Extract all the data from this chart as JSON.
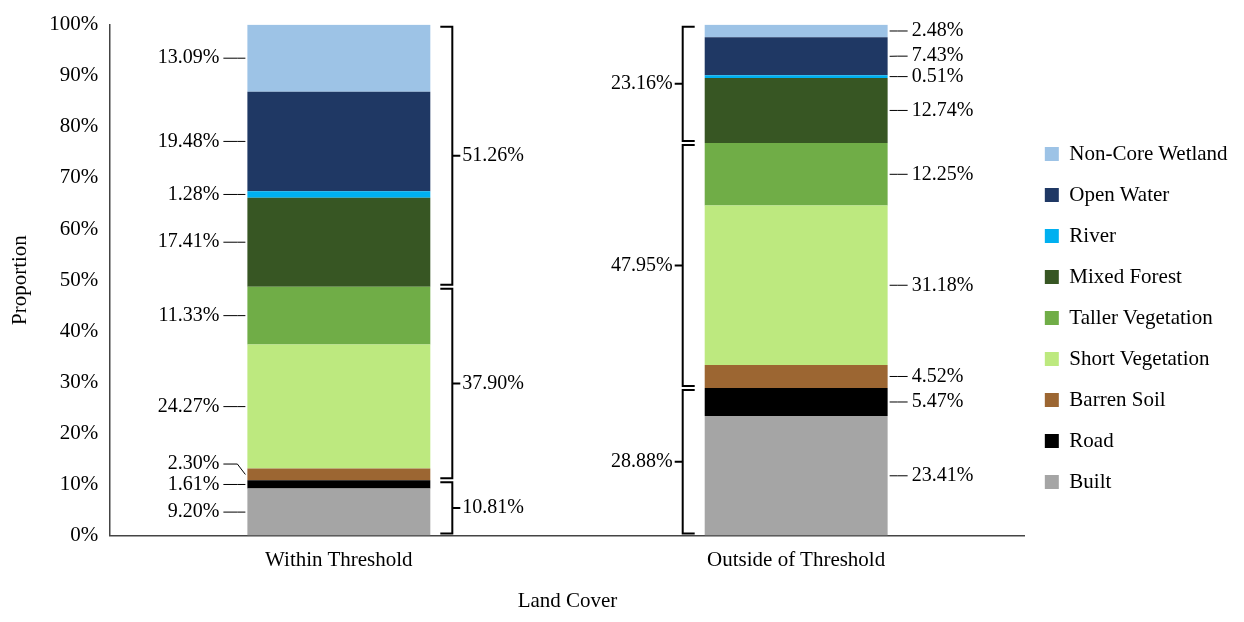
{
  "chart_data": {
    "type": "bar",
    "stacked": true,
    "xlabel": "Land Cover",
    "ylabel": "Proportion",
    "categories": [
      "Within Threshold",
      "Outside of Threshold"
    ],
    "ylim": [
      0,
      100
    ],
    "yticks": [
      {
        "value": 0,
        "label": "0%"
      },
      {
        "value": 10,
        "label": "10%"
      },
      {
        "value": 20,
        "label": "20%"
      },
      {
        "value": 30,
        "label": "30%"
      },
      {
        "value": 40,
        "label": "40%"
      },
      {
        "value": 50,
        "label": "50%"
      },
      {
        "value": 60,
        "label": "60%"
      },
      {
        "value": 70,
        "label": "70%"
      },
      {
        "value": 80,
        "label": "80%"
      },
      {
        "value": 90,
        "label": "90%"
      },
      {
        "value": 100,
        "label": "100%"
      }
    ],
    "grid": false,
    "legend": "right",
    "series": [
      {
        "name": "Built",
        "color": "#a5a5a5",
        "values": [
          9.2,
          23.41
        ],
        "value_labels": [
          "9.20%",
          "23.41%"
        ]
      },
      {
        "name": "Road",
        "color": "#000000",
        "values": [
          1.61,
          5.47
        ],
        "value_labels": [
          "1.61%",
          "5.47%"
        ]
      },
      {
        "name": "Barren Soil",
        "color": "#9c6632",
        "values": [
          2.3,
          4.52
        ],
        "value_labels": [
          "2.30%",
          "4.52%"
        ]
      },
      {
        "name": "Short Vegetation",
        "color": "#bde97f",
        "values": [
          24.27,
          31.18
        ],
        "value_labels": [
          "24.27%",
          "31.18%"
        ]
      },
      {
        "name": "Taller Vegetation",
        "color": "#70ad47",
        "values": [
          11.33,
          12.25
        ],
        "value_labels": [
          "11.33%",
          "12.25%"
        ]
      },
      {
        "name": "Mixed Forest",
        "color": "#375623",
        "values": [
          17.41,
          12.74
        ],
        "value_labels": [
          "17.41%",
          "12.74%"
        ]
      },
      {
        "name": "River",
        "color": "#00b0f0",
        "values": [
          1.28,
          0.51
        ],
        "value_labels": [
          "1.28%",
          "0.51%"
        ]
      },
      {
        "name": "Open Water",
        "color": "#1f3864",
        "values": [
          19.48,
          7.43
        ],
        "value_labels": [
          "19.48%",
          "7.43%"
        ]
      },
      {
        "name": "Non-Core Wetland",
        "color": "#9dc3e6",
        "values": [
          13.09,
          2.48
        ],
        "value_labels": [
          "13.09%",
          "2.48%"
        ]
      }
    ],
    "annotations": [
      "10.81%",
      "37.90%",
      "51.26%",
      "28.88%",
      "47.95%",
      "23.16%"
    ]
  }
}
